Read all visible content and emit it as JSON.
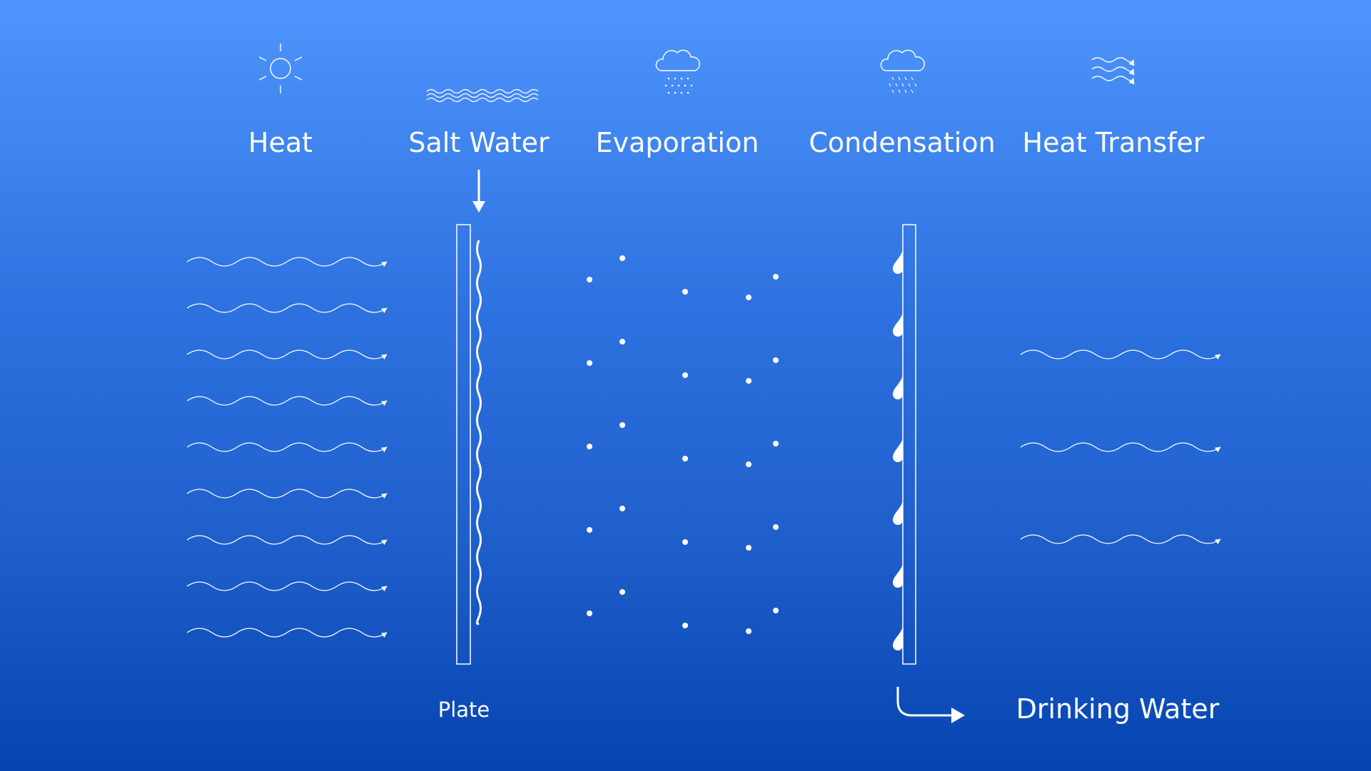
{
  "headings": {
    "heat": "Heat",
    "salt_water": "Salt Water",
    "evaporation": "Evaporation",
    "condensation": "Condensation",
    "heat_transfer": "Heat Transfer"
  },
  "labels": {
    "plate": "Plate",
    "drinking_water": "Drinking Water"
  },
  "icons": {
    "heat": "sun-icon",
    "salt_water": "waves-icon",
    "evaporation": "cloud-mist-icon",
    "condensation": "cloud-rain-icon",
    "heat_transfer": "wind-arrows-icon"
  },
  "colors": {
    "background_top": "#4f95fd",
    "background_bottom": "#0645b0",
    "foreground": "#ffffff"
  }
}
